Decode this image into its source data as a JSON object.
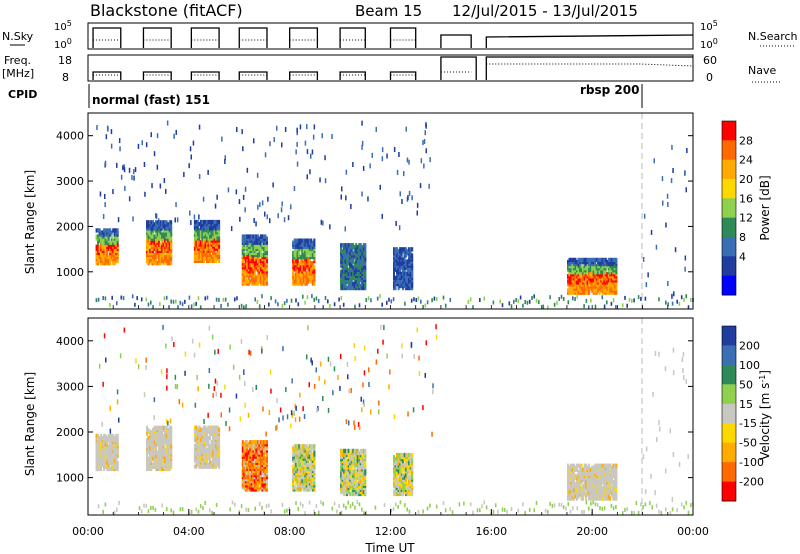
{
  "header": {
    "radar": "Blackstone (fitACF)",
    "beam": "Beam 15",
    "date_range": "12/Jul/2015 - 13/Jul/2015"
  },
  "panels": {
    "nsky_label": "N.Sky",
    "nsky_ticks": [
      "10^5",
      "10^0"
    ],
    "nsearch_label": "N.Search",
    "nsearch_ticks": [
      "10^5",
      "10^0"
    ],
    "freq_label": "Freq.",
    "freq_unit": "[MHz]",
    "freq_ticks": [
      "18",
      "8"
    ],
    "nave_label": "Nave",
    "nave_ticks": [
      "60",
      "0"
    ],
    "cpid_label": "CPID",
    "cpid_segments": [
      {
        "label": "normal (fast) 151",
        "start_hr": 0,
        "end_hr": 21.85
      },
      {
        "label": "rbsp 200",
        "start_hr": 21.85,
        "end_hr": 24
      }
    ]
  },
  "chart_data": [
    {
      "type": "heatmap",
      "title": "",
      "xlabel": "",
      "ylabel": "Slant Range [km]",
      "xlim": [
        0,
        24
      ],
      "ylim": [
        180,
        4500
      ],
      "yticks": [
        1000,
        2000,
        3000,
        4000
      ],
      "colorbar": {
        "label": "Power [dB]",
        "ticks": [
          "28",
          "24",
          "20",
          "16",
          "12",
          "8",
          "4"
        ],
        "colors": [
          "#ff0000",
          "#ff6a00",
          "#ffab00",
          "#ffd800",
          "#8fd14f",
          "#2e8b57",
          "#3a6fb5",
          "#1f3c9e",
          "#0000ff"
        ]
      },
      "echo_blocks": [
        {
          "t": [
            0.3,
            1.2
          ],
          "range": [
            1150,
            1900
          ],
          "level": "high"
        },
        {
          "t": [
            2.3,
            3.3
          ],
          "range": [
            1150,
            2100
          ],
          "level": "high"
        },
        {
          "t": [
            4.2,
            5.2
          ],
          "range": [
            1200,
            2100
          ],
          "level": "high"
        },
        {
          "t": [
            6.1,
            7.1
          ],
          "range": [
            700,
            1800
          ],
          "level": "high"
        },
        {
          "t": [
            8.1,
            9.0
          ],
          "range": [
            700,
            1700
          ],
          "level": "high"
        },
        {
          "t": [
            10.0,
            11.0
          ],
          "range": [
            600,
            1600
          ],
          "level": "medium"
        },
        {
          "t": [
            12.1,
            12.9
          ],
          "range": [
            600,
            1500
          ],
          "level": "low"
        },
        {
          "t": [
            19.0,
            21.0
          ],
          "range": [
            500,
            1250
          ],
          "level": "high"
        }
      ]
    },
    {
      "type": "heatmap",
      "title": "",
      "xlabel": "Time UT",
      "ylabel": "Slant Range [km]",
      "xlim": [
        0,
        24
      ],
      "ylim": [
        180,
        4500
      ],
      "yticks": [
        1000,
        2000,
        3000,
        4000
      ],
      "xticks": [
        "00:00",
        "04:00",
        "08:00",
        "12:00",
        "16:00",
        "20:00",
        "00:00"
      ],
      "colorbar": {
        "label": "Velocity [m s^-1]",
        "ticks": [
          "200",
          "100",
          "50",
          "15",
          "-15",
          "-50",
          "-100",
          "-200"
        ],
        "colors": [
          "#1f3c9e",
          "#3a6fb5",
          "#2e8b57",
          "#8fd14f",
          "#c8c8c0",
          "#ffd800",
          "#ffab00",
          "#ff6a00",
          "#ff0000"
        ]
      },
      "echo_blocks": [
        {
          "t": [
            0.3,
            1.2
          ],
          "range": [
            1150,
            1900
          ],
          "level": "gray"
        },
        {
          "t": [
            2.3,
            3.3
          ],
          "range": [
            1150,
            2100
          ],
          "level": "gray"
        },
        {
          "t": [
            4.2,
            5.2
          ],
          "range": [
            1200,
            2100
          ],
          "level": "gray"
        },
        {
          "t": [
            6.1,
            7.1
          ],
          "range": [
            700,
            1800
          ],
          "level": "neg"
        },
        {
          "t": [
            8.1,
            9.0
          ],
          "range": [
            700,
            1700
          ],
          "level": "mixed"
        },
        {
          "t": [
            10.0,
            11.0
          ],
          "range": [
            600,
            1600
          ],
          "level": "mixed"
        },
        {
          "t": [
            12.1,
            12.9
          ],
          "range": [
            600,
            1500
          ],
          "level": "mixed"
        },
        {
          "t": [
            19.0,
            21.0
          ],
          "range": [
            500,
            1250
          ],
          "level": "gray"
        }
      ]
    }
  ]
}
